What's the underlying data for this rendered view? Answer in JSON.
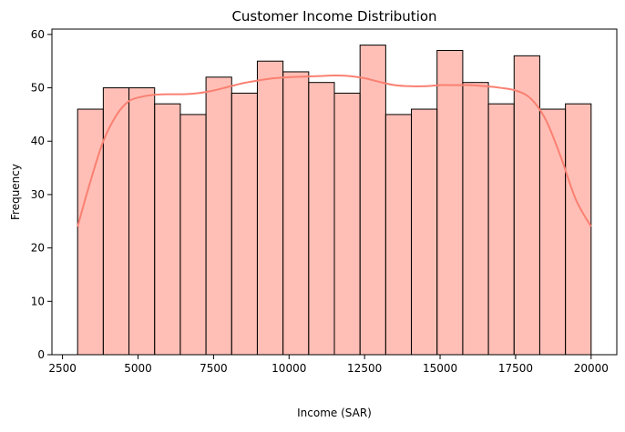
{
  "chart_data": {
    "type": "bar",
    "chart_kind": "histogram",
    "title": "Customer Income Distribution",
    "xlabel": "Income (SAR)",
    "ylabel": "Frequency",
    "xlim": [
      2150,
      20850
    ],
    "ylim": [
      0,
      61
    ],
    "xticks": [
      2500,
      5000,
      7500,
      10000,
      12500,
      15000,
      17500,
      20000
    ],
    "xtick_labels": [
      "2500",
      "5000",
      "7500",
      "10000",
      "12500",
      "15000",
      "17500",
      "20000"
    ],
    "yticks": [
      0,
      10,
      20,
      30,
      40,
      50,
      60
    ],
    "ytick_labels": [
      "0",
      "10",
      "20",
      "30",
      "40",
      "50",
      "60"
    ],
    "bin_edges": [
      3000,
      3850,
      4700,
      5550,
      6400,
      7250,
      8100,
      8950,
      9800,
      10650,
      11500,
      12350,
      13200,
      14050,
      14900,
      15750,
      16600,
      17450,
      18300,
      19150,
      20000
    ],
    "values": [
      46,
      50,
      50,
      47,
      45,
      52,
      49,
      55,
      53,
      51,
      49,
      58,
      45,
      46,
      57,
      51,
      47,
      56,
      46,
      47
    ],
    "kde": {
      "x": [
        3000,
        3400,
        3850,
        4300,
        4700,
        5100,
        5550,
        6000,
        6500,
        7000,
        7500,
        8000,
        8500,
        9000,
        9500,
        10000,
        10500,
        11000,
        11500,
        12000,
        12500,
        13000,
        13500,
        14000,
        14500,
        15000,
        15500,
        16000,
        16500,
        17000,
        17500,
        18000,
        18500,
        19000,
        19500,
        20000
      ],
      "y": [
        24,
        32,
        40,
        45,
        47.5,
        48.3,
        48.7,
        48.8,
        48.8,
        49,
        49.5,
        50.2,
        50.9,
        51.4,
        51.8,
        52,
        52.1,
        52.2,
        52.3,
        52.2,
        51.8,
        51.1,
        50.5,
        50.3,
        50.3,
        50.5,
        50.5,
        50.5,
        50.3,
        50,
        49.5,
        48,
        44,
        37,
        29,
        24
      ]
    },
    "colors": {
      "bar_fill": "#ff8a7a",
      "bar_edge": "#000000",
      "kde_line": "#fa8072"
    },
    "grid": false,
    "legend": "none"
  }
}
